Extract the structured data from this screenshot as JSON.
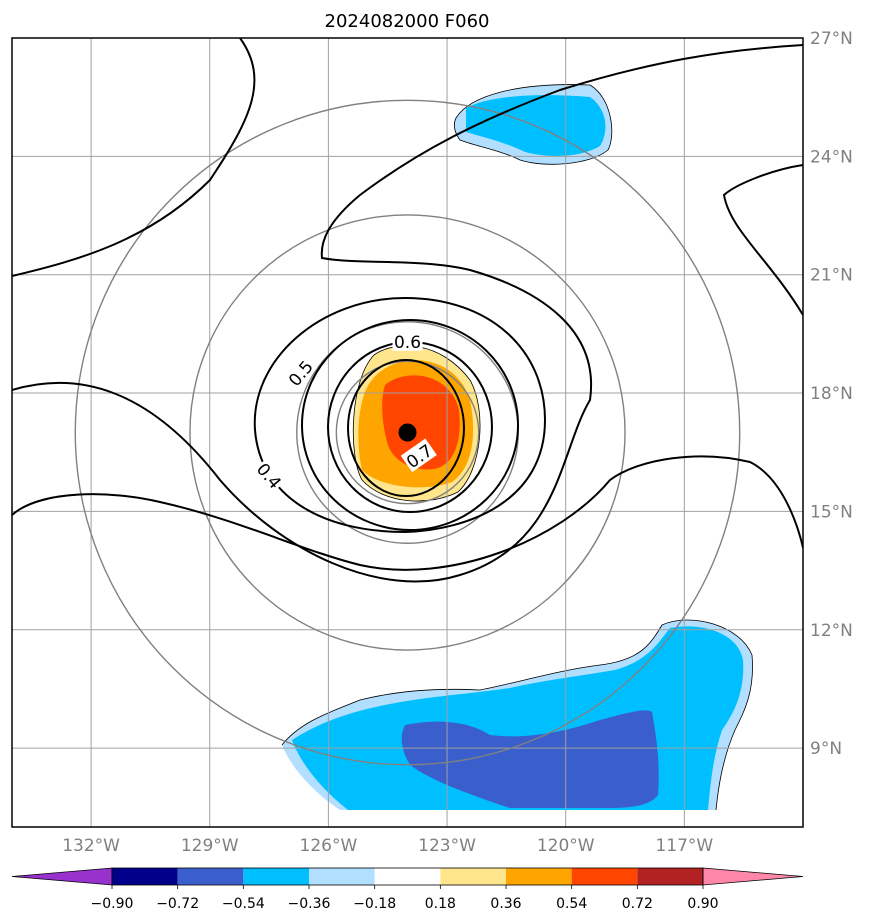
{
  "chart_data": {
    "type": "contour_map",
    "title": "2024082000 F060",
    "longitude_ticks": [
      "132°W",
      "129°W",
      "126°W",
      "123°W",
      "120°W",
      "117°W"
    ],
    "latitude_ticks": [
      "27°N",
      "24°N",
      "21°N",
      "18°N",
      "15°N",
      "12°N",
      "9°N"
    ],
    "lon_range": [
      -134,
      -114
    ],
    "lat_range": [
      7,
      27
    ],
    "grid": true,
    "storm_center": {
      "lon": -124,
      "lat": 17
    },
    "line_contour_labels": [
      {
        "text": "0.4",
        "lon": -127.5,
        "lat": 15.9,
        "angle": 50
      },
      {
        "text": "0.5",
        "lon": -126.7,
        "lat": 18.5,
        "angle": -50
      },
      {
        "text": "0.6",
        "lon": -124,
        "lat": 19.3,
        "angle": 0
      },
      {
        "text": "0.7",
        "lon": -123.7,
        "lat": 16.4,
        "angle": -35
      }
    ],
    "range_rings_deg": [
      1.8,
      2.8,
      5.5,
      8.4
    ],
    "colorbar": {
      "levels": [
        "−0.90",
        "−0.72",
        "−0.54",
        "−0.36",
        "−0.18",
        "0.18",
        "0.36",
        "0.54",
        "0.72",
        "0.90"
      ],
      "colors": [
        "#9932cc",
        "#00008b",
        "#3a5fcd",
        "#00bfff",
        "#b2dfff",
        "#ffffff",
        "#ffe68c",
        "#ffa500",
        "#ff4500",
        "#b22222",
        "#ff88aa"
      ]
    }
  }
}
